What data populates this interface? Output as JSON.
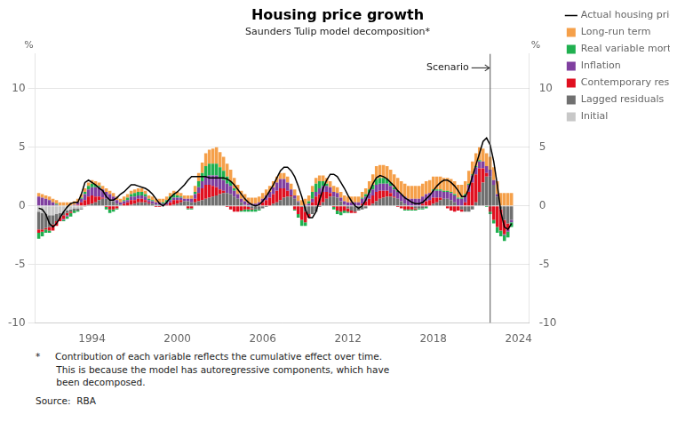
{
  "chart_data": {
    "type": "bar",
    "title": "Housing price growth",
    "subtitle": "Saunders Tulip model decomposition*",
    "ylabel": "%",
    "y2label": "%",
    "stacked": true,
    "grid": true,
    "legend": "right",
    "xlim": [
      1990.0,
      2024.75
    ],
    "xticks": [
      1994,
      2000,
      2006,
      2012,
      2018,
      2024
    ],
    "ylim": [
      -10,
      13
    ],
    "yticks": [
      -10,
      -5,
      0,
      5,
      10
    ],
    "y2lim": [
      -10,
      13
    ],
    "y2ticks": [
      -10,
      -5,
      0,
      5,
      10
    ],
    "annotations": [
      {
        "x": 2022.0,
        "text": "Scenario"
      }
    ],
    "footnotes": [
      "*     Contribution of each variable reflects the cumulative effect over time.",
      "       This is because the model has autoregressive components, which have",
      "       been decomposed."
    ],
    "source": "Source:  RBA",
    "x": [
      1990.25,
      1990.5,
      1990.75,
      1991.0,
      1991.25,
      1991.5,
      1991.75,
      1992.0,
      1992.25,
      1992.5,
      1992.75,
      1993.0,
      1993.25,
      1993.5,
      1993.75,
      1994.0,
      1994.25,
      1994.5,
      1994.75,
      1995.0,
      1995.25,
      1995.5,
      1995.75,
      1996.0,
      1996.25,
      1996.5,
      1996.75,
      1997.0,
      1997.25,
      1997.5,
      1997.75,
      1998.0,
      1998.25,
      1998.5,
      1998.75,
      1999.0,
      1999.25,
      1999.5,
      1999.75,
      2000.0,
      2000.25,
      2000.5,
      2000.75,
      2001.0,
      2001.25,
      2001.5,
      2001.75,
      2002.0,
      2002.25,
      2002.5,
      2002.75,
      2003.0,
      2003.25,
      2003.5,
      2003.75,
      2004.0,
      2004.25,
      2004.5,
      2004.75,
      2005.0,
      2005.25,
      2005.5,
      2005.75,
      2006.0,
      2006.25,
      2006.5,
      2006.75,
      2007.0,
      2007.25,
      2007.5,
      2007.75,
      2008.0,
      2008.25,
      2008.5,
      2008.75,
      2009.0,
      2009.25,
      2009.5,
      2009.75,
      2010.0,
      2010.25,
      2010.5,
      2010.75,
      2011.0,
      2011.25,
      2011.5,
      2011.75,
      2012.0,
      2012.25,
      2012.5,
      2012.75,
      2013.0,
      2013.25,
      2013.5,
      2013.75,
      2014.0,
      2014.25,
      2014.5,
      2014.75,
      2015.0,
      2015.25,
      2015.5,
      2015.75,
      2016.0,
      2016.25,
      2016.5,
      2016.75,
      2017.0,
      2017.25,
      2017.5,
      2017.75,
      2018.0,
      2018.25,
      2018.5,
      2018.75,
      2019.0,
      2019.25,
      2019.5,
      2019.75,
      2020.0,
      2020.25,
      2020.5,
      2020.75,
      2021.0,
      2021.25,
      2021.5,
      2021.75,
      2022.0,
      2022.25,
      2022.5,
      2022.75,
      2023.0,
      2023.25,
      2023.5
    ],
    "series": [
      {
        "name": "Actual housing price growth",
        "type": "line",
        "color": "#000000",
        "values": [
          -0.2,
          -0.3,
          -0.7,
          -1.5,
          -1.8,
          -1.5,
          -1.0,
          -0.5,
          -0.1,
          0.2,
          0.3,
          0.3,
          1.0,
          2.0,
          2.2,
          2.0,
          1.8,
          1.5,
          1.3,
          0.8,
          0.5,
          0.5,
          0.7,
          1.0,
          1.2,
          1.5,
          1.8,
          1.8,
          1.7,
          1.6,
          1.5,
          1.3,
          1.0,
          0.6,
          0.2,
          0.0,
          0.3,
          0.7,
          1.0,
          1.2,
          1.5,
          1.8,
          2.2,
          2.5,
          2.5,
          2.5,
          2.5,
          2.5,
          2.4,
          2.4,
          2.4,
          2.4,
          2.4,
          2.3,
          2.1,
          1.8,
          1.4,
          1.0,
          0.6,
          0.3,
          0.1,
          0.0,
          0.1,
          0.4,
          0.8,
          1.3,
          1.8,
          2.4,
          3.0,
          3.3,
          3.3,
          3.0,
          2.5,
          1.7,
          0.8,
          -0.3,
          -1.0,
          -1.0,
          -0.5,
          0.5,
          1.5,
          2.2,
          2.7,
          2.7,
          2.5,
          2.0,
          1.5,
          0.9,
          0.4,
          0.0,
          -0.2,
          0.0,
          0.5,
          1.2,
          1.9,
          2.4,
          2.6,
          2.5,
          2.3,
          2.0,
          1.7,
          1.3,
          1.0,
          0.7,
          0.5,
          0.3,
          0.2,
          0.2,
          0.3,
          0.6,
          0.9,
          1.3,
          1.7,
          2.0,
          2.2,
          2.2,
          2.0,
          1.7,
          1.3,
          0.8,
          0.8,
          1.5,
          2.5,
          3.5,
          4.5,
          5.5,
          5.8,
          5.2,
          3.8,
          1.8,
          -0.5,
          -1.8,
          -2.0,
          -1.5
        ]
      },
      {
        "name": "Long-run term",
        "type": "bar",
        "color": "#F5A04A",
        "values": [
          0.3,
          0.3,
          0.3,
          0.3,
          0.3,
          0.3,
          0.3,
          0.3,
          0.3,
          0.3,
          0.3,
          0.3,
          0.3,
          0.3,
          0.3,
          0.3,
          0.3,
          0.3,
          0.3,
          0.3,
          0.3,
          0.3,
          0.3,
          0.3,
          0.3,
          0.3,
          0.3,
          0.3,
          0.3,
          0.3,
          0.3,
          0.3,
          0.3,
          0.3,
          0.3,
          0.3,
          0.3,
          0.3,
          0.3,
          0.3,
          0.3,
          0.3,
          0.3,
          0.3,
          0.5,
          0.7,
          0.9,
          1.1,
          1.2,
          1.3,
          1.4,
          1.3,
          1.2,
          1.1,
          1.0,
          0.9,
          0.8,
          0.7,
          0.6,
          0.5,
          0.5,
          0.5,
          0.5,
          0.5,
          0.5,
          0.5,
          0.5,
          0.5,
          0.5,
          0.5,
          0.5,
          0.5,
          0.5,
          0.5,
          0.5,
          0.5,
          0.5,
          0.5,
          0.5,
          0.5,
          0.5,
          0.5,
          0.5,
          0.5,
          0.5,
          0.5,
          0.5,
          0.5,
          0.5,
          0.5,
          0.5,
          0.5,
          0.5,
          0.7,
          0.9,
          1.1,
          1.1,
          1.1,
          1.1,
          1.1,
          1.1,
          1.1,
          1.1,
          1.1,
          1.1,
          1.1,
          1.1,
          1.1,
          1.1,
          1.1,
          1.1,
          1.1,
          1.1,
          1.1,
          1.1,
          1.1,
          1.1,
          1.1,
          1.1,
          1.1,
          1.1,
          1.1,
          1.1,
          1.1,
          1.1,
          1.1,
          1.1,
          1.1,
          1.1,
          1.1,
          1.1,
          1.1,
          1.1,
          1.1
        ]
      },
      {
        "name": "Real variable mortgage rate",
        "type": "bar",
        "color": "#20B050",
        "values": [
          -0.5,
          -0.4,
          -0.3,
          -0.2,
          0.0,
          0.1,
          0.0,
          -0.1,
          -0.2,
          -0.3,
          -0.2,
          -0.1,
          0.1,
          0.2,
          0.3,
          0.3,
          0.2,
          0.1,
          0.0,
          -0.2,
          -0.3,
          -0.2,
          -0.1,
          0.0,
          0.1,
          0.2,
          0.2,
          0.3,
          0.3,
          0.3,
          0.2,
          0.1,
          0.1,
          0.0,
          0.0,
          0.1,
          0.2,
          0.3,
          0.3,
          0.2,
          0.1,
          0.0,
          -0.1,
          -0.1,
          0.2,
          0.5,
          0.7,
          0.9,
          1.0,
          1.0,
          1.0,
          0.9,
          0.8,
          0.6,
          0.4,
          0.2,
          0.0,
          -0.1,
          -0.2,
          -0.2,
          -0.2,
          -0.2,
          -0.1,
          0.0,
          0.0,
          0.0,
          0.0,
          0.0,
          0.0,
          0.0,
          0.0,
          0.0,
          -0.1,
          -0.3,
          -0.5,
          -0.3,
          0.2,
          0.6,
          0.7,
          0.6,
          0.4,
          0.2,
          0.0,
          -0.2,
          -0.3,
          -0.3,
          -0.2,
          -0.1,
          0.0,
          0.0,
          0.0,
          0.1,
          0.2,
          0.3,
          0.4,
          0.5,
          0.5,
          0.5,
          0.4,
          0.3,
          0.2,
          0.1,
          0.0,
          -0.1,
          -0.1,
          -0.1,
          -0.1,
          -0.1,
          -0.1,
          -0.1,
          0.0,
          0.1,
          0.1,
          0.1,
          0.1,
          0.1,
          0.1,
          0.1,
          0.1,
          0.1,
          0.1,
          0.1,
          0.1,
          0.1,
          0.1,
          0.0,
          -0.1,
          -0.2,
          -0.3,
          -0.5,
          -0.5,
          -0.5,
          -0.5,
          -0.4
        ]
      },
      {
        "name": "Inflation",
        "type": "bar",
        "color": "#8040A0",
        "values": [
          0.8,
          0.7,
          0.6,
          0.5,
          0.3,
          0.1,
          0.0,
          -0.1,
          -0.1,
          0.0,
          0.1,
          0.2,
          0.3,
          0.5,
          0.6,
          0.7,
          0.8,
          0.8,
          0.7,
          0.6,
          0.5,
          0.4,
          0.3,
          0.2,
          0.2,
          0.2,
          0.3,
          0.3,
          0.3,
          0.3,
          0.3,
          0.2,
          0.2,
          0.2,
          0.2,
          0.2,
          0.2,
          0.2,
          0.2,
          0.2,
          0.2,
          0.2,
          0.2,
          0.3,
          0.4,
          0.5,
          0.6,
          0.7,
          0.8,
          0.9,
          1.0,
          1.0,
          0.9,
          0.8,
          0.7,
          0.5,
          0.4,
          0.3,
          0.3,
          0.2,
          0.2,
          0.2,
          0.2,
          0.3,
          0.4,
          0.5,
          0.6,
          0.7,
          0.8,
          0.8,
          0.7,
          0.5,
          0.3,
          0.1,
          0.0,
          0.1,
          0.2,
          0.3,
          0.4,
          0.5,
          0.5,
          0.5,
          0.5,
          0.4,
          0.4,
          0.3,
          0.3,
          0.3,
          0.3,
          0.3,
          0.3,
          0.4,
          0.4,
          0.5,
          0.5,
          0.6,
          0.6,
          0.6,
          0.6,
          0.6,
          0.6,
          0.6,
          0.6,
          0.6,
          0.6,
          0.6,
          0.6,
          0.6,
          0.6,
          0.6,
          0.6,
          0.6,
          0.6,
          0.6,
          0.6,
          0.6,
          0.6,
          0.6,
          0.6,
          0.6,
          0.6,
          0.6,
          0.6,
          0.6,
          0.6,
          0.6,
          0.6,
          0.6,
          0.4,
          0.2,
          0.0,
          -0.1,
          -0.2,
          -0.2
        ]
      },
      {
        "name": "Contemporary residual",
        "type": "bar",
        "color": "#E01020",
        "values": [
          -0.3,
          -0.2,
          -0.1,
          -0.3,
          -0.5,
          -0.4,
          -0.3,
          -0.3,
          -0.2,
          -0.1,
          0.0,
          0.1,
          0.3,
          0.5,
          0.7,
          0.7,
          0.5,
          0.3,
          0.1,
          -0.1,
          -0.3,
          -0.3,
          -0.2,
          0.0,
          0.2,
          0.3,
          0.4,
          0.3,
          0.3,
          0.3,
          0.2,
          0.1,
          0.0,
          -0.1,
          -0.1,
          0.0,
          0.1,
          0.3,
          0.4,
          0.3,
          0.2,
          0.0,
          -0.2,
          -0.2,
          0.3,
          0.7,
          1.0,
          1.2,
          1.1,
          0.9,
          0.7,
          0.4,
          0.2,
          -0.1,
          -0.3,
          -0.5,
          -0.5,
          -0.4,
          -0.3,
          -0.2,
          -0.1,
          0.0,
          0.1,
          0.3,
          0.5,
          0.7,
          0.8,
          1.0,
          1.0,
          0.8,
          0.5,
          0.1,
          -0.3,
          -0.7,
          -1.1,
          -0.9,
          -0.3,
          0.3,
          0.8,
          1.0,
          0.9,
          0.6,
          0.3,
          -0.1,
          -0.4,
          -0.5,
          -0.4,
          -0.3,
          -0.2,
          -0.1,
          0.0,
          0.2,
          0.4,
          0.6,
          0.7,
          0.8,
          0.7,
          0.6,
          0.5,
          0.3,
          0.1,
          -0.1,
          -0.2,
          -0.3,
          -0.3,
          -0.2,
          -0.1,
          0.0,
          0.2,
          0.4,
          0.5,
          0.5,
          0.4,
          0.2,
          0.0,
          -0.2,
          -0.4,
          -0.5,
          -0.4,
          -0.2,
          0.3,
          1.2,
          2.0,
          2.4,
          2.0,
          1.2,
          0.3,
          -0.5,
          -1.2,
          -1.8,
          -1.8,
          -1.2,
          -0.5,
          0.0
        ]
      },
      {
        "name": "Lagged residuals",
        "type": "bar",
        "color": "#707070",
        "values": [
          -1.5,
          -1.4,
          -1.2,
          -1.0,
          -0.8,
          -0.6,
          -0.4,
          -0.3,
          -0.2,
          -0.2,
          -0.2,
          -0.2,
          -0.1,
          0.0,
          0.1,
          0.2,
          0.3,
          0.5,
          0.6,
          0.6,
          0.5,
          0.4,
          0.2,
          0.1,
          0.0,
          0.0,
          0.1,
          0.2,
          0.3,
          0.3,
          0.3,
          0.2,
          0.2,
          0.1,
          0.1,
          0.0,
          0.0,
          0.0,
          0.1,
          0.2,
          0.3,
          0.4,
          0.4,
          0.3,
          0.3,
          0.4,
          0.5,
          0.6,
          0.7,
          0.8,
          0.9,
          1.0,
          1.1,
          1.1,
          1.0,
          0.8,
          0.6,
          0.3,
          0.1,
          -0.1,
          -0.2,
          -0.3,
          -0.3,
          -0.2,
          -0.1,
          0.0,
          0.2,
          0.3,
          0.5,
          0.7,
          0.8,
          0.8,
          0.6,
          0.3,
          -0.1,
          -0.5,
          -0.7,
          -0.7,
          -0.5,
          -0.1,
          0.3,
          0.6,
          0.8,
          0.8,
          0.7,
          0.4,
          0.1,
          -0.2,
          -0.4,
          -0.5,
          -0.4,
          -0.3,
          -0.2,
          0.0,
          0.2,
          0.4,
          0.6,
          0.7,
          0.8,
          0.8,
          0.7,
          0.6,
          0.4,
          0.2,
          0.0,
          -0.1,
          -0.2,
          -0.2,
          -0.2,
          -0.1,
          0.0,
          0.2,
          0.3,
          0.5,
          0.6,
          0.6,
          0.5,
          0.3,
          0.0,
          -0.3,
          -0.5,
          -0.5,
          -0.3,
          0.3,
          1.2,
          2.0,
          2.5,
          2.5,
          1.8,
          0.8,
          -0.3,
          -1.2,
          -1.5,
          -1.2
        ]
      },
      {
        "name": "Initial",
        "type": "bar",
        "color": "#C8C8C8",
        "values": [
          -0.5,
          -0.6,
          -0.7,
          -0.8,
          -0.8,
          -0.7,
          -0.6,
          -0.5,
          -0.4,
          -0.3,
          -0.2,
          -0.2,
          -0.2,
          -0.1,
          0.0,
          0.0,
          0.0,
          0.0,
          0.0,
          0.0,
          0.0,
          0.0,
          0.0,
          0.0,
          0.0,
          0.0,
          0.0,
          0.0,
          0.0,
          0.0,
          0.0,
          0.0,
          0.0,
          0.0,
          0.0,
          0.0,
          0.0,
          0.0,
          0.0,
          0.0,
          0.0,
          0.0,
          0.0,
          0.0,
          0.0,
          0.0,
          0.0,
          0.0,
          0.0,
          0.0,
          0.0,
          0.0,
          0.0,
          0.0,
          0.0,
          0.0,
          0.0,
          0.0,
          0.0,
          0.0,
          0.0,
          0.0,
          0.0,
          0.0,
          0.0,
          0.0,
          0.0,
          0.0,
          0.0,
          0.0,
          0.0,
          0.0,
          0.0,
          0.0,
          0.0,
          0.0,
          0.0,
          0.0,
          0.0,
          0.0,
          0.0,
          0.0,
          0.0,
          0.0,
          0.0,
          0.0,
          0.0,
          0.0,
          0.0,
          0.0,
          0.0,
          0.0,
          0.0,
          0.0,
          0.0,
          0.0,
          0.0,
          0.0,
          0.0,
          0.0,
          0.0,
          0.0,
          0.0,
          0.0,
          0.0,
          0.0,
          0.0,
          0.0,
          0.0,
          0.0,
          0.0,
          0.0,
          0.0,
          0.0,
          0.0,
          0.0,
          0.0,
          0.0,
          0.0,
          0.0,
          0.0,
          0.0,
          0.0,
          0.0,
          0.0,
          0.0,
          0.0,
          0.0,
          0.0,
          0.0,
          0.0,
          0.0,
          0.0,
          0.0
        ]
      }
    ]
  }
}
